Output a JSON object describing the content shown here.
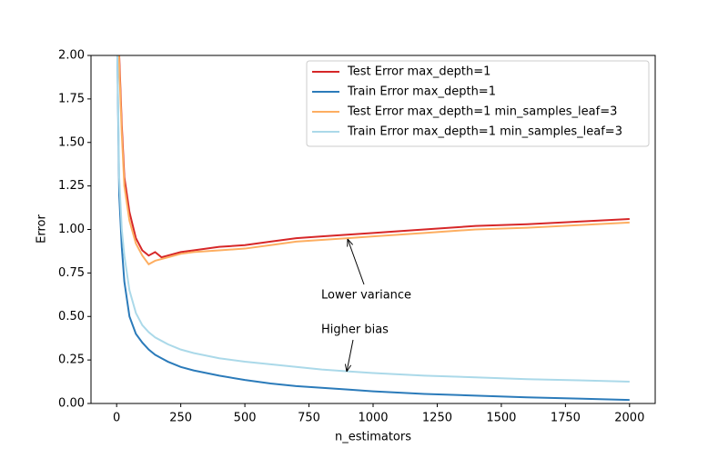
{
  "chart_data": {
    "type": "line",
    "xlabel": "n_estimators",
    "ylabel": "Error",
    "x": [
      1,
      10,
      20,
      30,
      50,
      75,
      100,
      125,
      150,
      175,
      200,
      250,
      300,
      400,
      500,
      600,
      700,
      800,
      900,
      1000,
      1200,
      1400,
      1600,
      1800,
      2000
    ],
    "series": [
      {
        "name": "Test Error max_depth=1",
        "color": "#d62728",
        "values": [
          2.5,
          2.0,
          1.6,
          1.3,
          1.1,
          0.95,
          0.88,
          0.85,
          0.87,
          0.84,
          0.85,
          0.87,
          0.88,
          0.9,
          0.91,
          0.93,
          0.95,
          0.96,
          0.97,
          0.98,
          1.0,
          1.02,
          1.03,
          1.045,
          1.06
        ]
      },
      {
        "name": "Train Error max_depth=1",
        "color": "#2b7bba",
        "values": [
          2.2,
          1.2,
          0.9,
          0.7,
          0.5,
          0.4,
          0.35,
          0.31,
          0.28,
          0.26,
          0.24,
          0.21,
          0.19,
          0.16,
          0.135,
          0.115,
          0.1,
          0.09,
          0.08,
          0.07,
          0.055,
          0.045,
          0.035,
          0.028,
          0.02
        ]
      },
      {
        "name": "Test Error max_depth=1 min_samples_leaf=3",
        "color": "#fdae61",
        "values": [
          2.5,
          1.95,
          1.55,
          1.25,
          1.05,
          0.92,
          0.85,
          0.8,
          0.82,
          0.83,
          0.84,
          0.86,
          0.87,
          0.88,
          0.89,
          0.91,
          0.93,
          0.94,
          0.95,
          0.96,
          0.98,
          1.0,
          1.01,
          1.025,
          1.04
        ]
      },
      {
        "name": "Train Error max_depth=1 min_samples_leaf=3",
        "color": "#abd9e9",
        "values": [
          2.2,
          1.3,
          1.0,
          0.85,
          0.65,
          0.52,
          0.45,
          0.41,
          0.38,
          0.36,
          0.34,
          0.31,
          0.29,
          0.26,
          0.24,
          0.225,
          0.21,
          0.195,
          0.185,
          0.175,
          0.16,
          0.15,
          0.14,
          0.133,
          0.125
        ]
      }
    ],
    "xlim": [
      -100,
      2100
    ],
    "xticks": [
      0,
      250,
      500,
      750,
      1000,
      1250,
      1500,
      1750,
      2000
    ],
    "ylim": [
      0,
      2
    ],
    "yticks": [
      {
        "value": 0,
        "label": "0.00"
      },
      {
        "value": 0.25,
        "label": "0.25"
      },
      {
        "value": 0.5,
        "label": "0.50"
      },
      {
        "value": 0.75,
        "label": "0.75"
      },
      {
        "value": 1,
        "label": "1.00"
      },
      {
        "value": 1.25,
        "label": "1.25"
      },
      {
        "value": 1.5,
        "label": "1.50"
      },
      {
        "value": 1.75,
        "label": "1.75"
      },
      {
        "value": 2,
        "label": "2.00"
      }
    ],
    "legend": "upper right",
    "annotations": [
      "Lower variance",
      "Higher bias"
    ]
  }
}
